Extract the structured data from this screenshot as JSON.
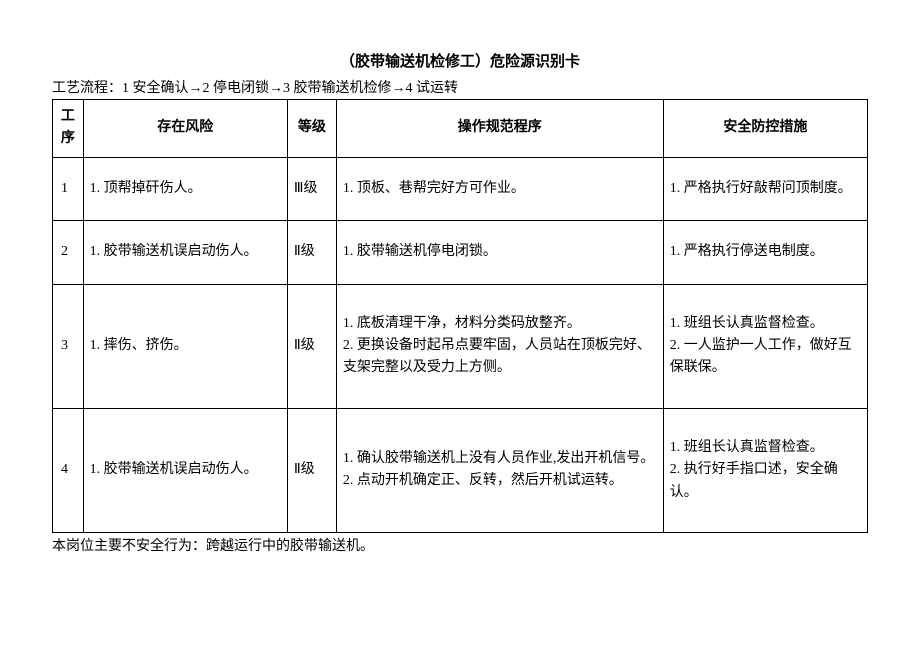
{
  "title": "（胶带输送机检修工）危险源识别卡",
  "process_line": "工艺流程：1 安全确认→2 停电闭锁→3 胶带输送机检修→4 试运转",
  "columns": {
    "seq": "工序",
    "risk": "存在风险",
    "level": "等级",
    "procedure": "操作规范程序",
    "measure": "安全防控措施"
  },
  "rows": [
    {
      "seq": "1",
      "risk": "1. 顶帮掉矸伤人。",
      "level": "Ⅲ级",
      "procedure": "1. 顶板、巷帮完好方可作业。",
      "measure": "1. 严格执行好敲帮问顶制度。"
    },
    {
      "seq": "2",
      "risk": "1. 胶带输送机误启动伤人。",
      "level": "Ⅱ级",
      "procedure": "1. 胶带输送机停电闭锁。",
      "measure": "1. 严格执行停送电制度。"
    },
    {
      "seq": "3",
      "risk": "1. 摔伤、挤伤。",
      "level": "Ⅱ级",
      "procedure": "1. 底板清理干净，材料分类码放整齐。\n2. 更换设备时起吊点要牢固，人员站在顶板完好、支架完整以及受力上方侧。",
      "measure": "1. 班组长认真监督检查。\n2. 一人监护一人工作，做好互保联保。"
    },
    {
      "seq": "4",
      "risk": "1. 胶带输送机误启动伤人。",
      "level": "Ⅱ级",
      "procedure": "1. 确认胶带输送机上没有人员作业,发出开机信号。\n2. 点动开机确定正、反转，然后开机试运转。",
      "measure": "1. 班组长认真监督检查。\n2. 执行好手指口述，安全确认。"
    }
  ],
  "footer": "本岗位主要不安全行为：跨越运行中的胶带输送机。"
}
